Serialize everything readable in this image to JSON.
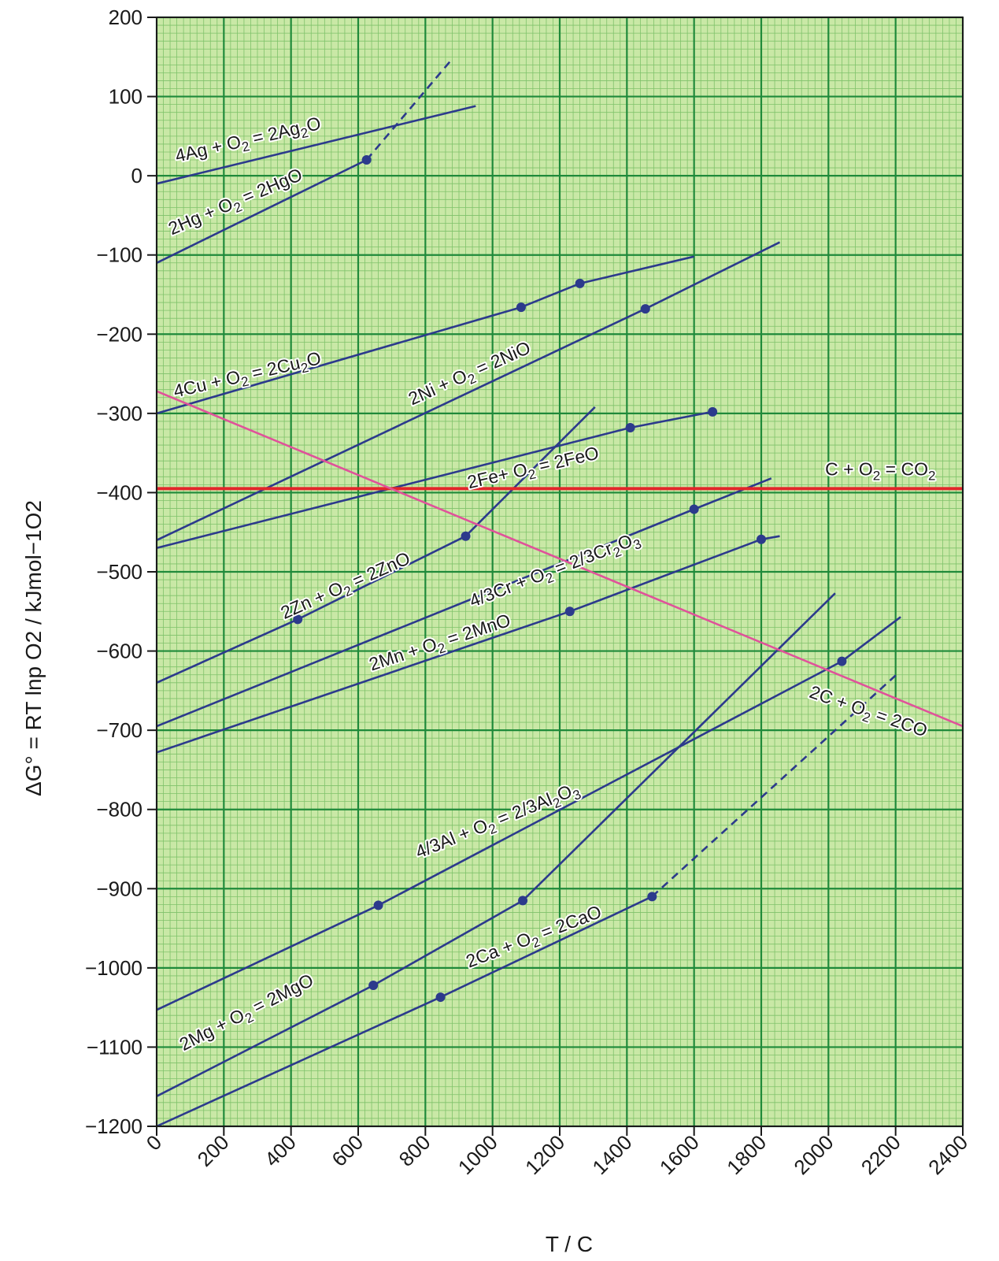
{
  "chart_data": {
    "type": "line",
    "xlabel": "T /  C",
    "ylabel": "ΔG° = RT lnp O2 / kJmol−1O2",
    "xlim": [
      0,
      2400
    ],
    "ylim": [
      -1200,
      200
    ],
    "xticks": [
      "0",
      "200",
      "400",
      "600",
      "800",
      "1000",
      "1200",
      "1400",
      "1600",
      "1800",
      "2000",
      "2200",
      "2400"
    ],
    "yticks": [
      "200",
      "100",
      "0",
      "−100",
      "−200",
      "−300",
      "−400",
      "−500",
      "−600",
      "−700",
      "−800",
      "−900",
      "−1000",
      "−1100",
      "−1200"
    ],
    "grid": true,
    "colors": {
      "background": "#c9e8a6",
      "minor_grid": "#7fc26a",
      "major_grid": "#1f8a3a",
      "line": "#2c3a8c",
      "carbon_monoxide": "#e0529a",
      "carbon_dioxide": "#e3262b"
    },
    "series": [
      {
        "name": "4Ag + O2 = 2Ag2O",
        "label_parts": [
          "4Ag + O",
          "2",
          " = 2Ag",
          "2",
          "O"
        ],
        "color": "#2c3a8c",
        "segments": [
          {
            "style": "solid",
            "x": [
              0,
              950
            ],
            "y": [
              -10,
              88
            ]
          }
        ],
        "markers": []
      },
      {
        "name": "2Hg + O2 = 2HgO",
        "label_parts": [
          "2Hg + O",
          "2",
          " = 2HgO"
        ],
        "color": "#2c3a8c",
        "segments": [
          {
            "style": "solid",
            "x": [
              0,
              625
            ],
            "y": [
              -110,
              20
            ]
          },
          {
            "style": "dashed",
            "x": [
              625,
              875
            ],
            "y": [
              20,
              145
            ]
          }
        ],
        "markers": [
          {
            "x": 625,
            "y": 20
          }
        ]
      },
      {
        "name": "4Cu + O2 = 2Cu2O",
        "label_parts": [
          "4Cu + O",
          "2",
          " = 2Cu",
          "2",
          "O"
        ],
        "color": "#2c3a8c",
        "segments": [
          {
            "style": "solid",
            "x": [
              0,
              1085,
              1260,
              1600
            ],
            "y": [
              -300,
              -166,
              -136,
              -102
            ]
          }
        ],
        "markers": [
          {
            "x": 1085,
            "y": -166
          },
          {
            "x": 1260,
            "y": -136
          }
        ]
      },
      {
        "name": "2Ni + O2 = 2NiO",
        "label_parts": [
          "2Ni + O",
          "2",
          " = 2NiO"
        ],
        "color": "#2c3a8c",
        "segments": [
          {
            "style": "solid",
            "x": [
              0,
              1455,
              1855
            ],
            "y": [
              -460,
              -168,
              -84
            ]
          }
        ],
        "markers": [
          {
            "x": 1455,
            "y": -168
          }
        ]
      },
      {
        "name": "2Fe + O2 = 2FeO",
        "label_parts": [
          "2Fe+ O",
          "2",
          " = 2FeO"
        ],
        "color": "#2c3a8c",
        "segments": [
          {
            "style": "solid",
            "x": [
              0,
              1410,
              1655
            ],
            "y": [
              -470,
              -318,
              -298
            ]
          }
        ],
        "markers": [
          {
            "x": 1410,
            "y": -318
          },
          {
            "x": 1655,
            "y": -298
          }
        ]
      },
      {
        "name": "2Zn + O2 = 2ZnO",
        "label_parts": [
          "2Zn + O",
          "2",
          " = 2ZnO"
        ],
        "color": "#2c3a8c",
        "segments": [
          {
            "style": "solid",
            "x": [
              0,
              420,
              920,
              1305
            ],
            "y": [
              -640,
              -560,
              -455,
              -292
            ]
          }
        ],
        "markers": [
          {
            "x": 420,
            "y": -560
          },
          {
            "x": 920,
            "y": -455
          }
        ]
      },
      {
        "name": "4/3Cr + O2 = 2/3Cr2O3",
        "label_parts": [
          "4/3Cr + O",
          "2",
          " = 2/3Cr",
          "2",
          "O",
          "3"
        ],
        "color": "#2c3a8c",
        "segments": [
          {
            "style": "solid",
            "x": [
              0,
              1600,
              1830
            ],
            "y": [
              -695,
              -421,
              -382
            ]
          }
        ],
        "markers": [
          {
            "x": 1600,
            "y": -421
          }
        ]
      },
      {
        "name": "2Mn + O2 = 2MnO",
        "label_parts": [
          "2Mn + O",
          "2",
          " = 2MnO"
        ],
        "color": "#2c3a8c",
        "segments": [
          {
            "style": "solid",
            "x": [
              0,
              1230,
              1800,
              1855
            ],
            "y": [
              -728,
              -550,
              -459,
              -455
            ]
          }
        ],
        "markers": [
          {
            "x": 1230,
            "y": -550
          },
          {
            "x": 1800,
            "y": -459
          }
        ]
      },
      {
        "name": "4/3Al + O2 = 2/3Al2O3",
        "label_parts": [
          "4/3Al + O",
          "2",
          " = 2/3Al",
          "2",
          "O",
          "3"
        ],
        "color": "#2c3a8c",
        "segments": [
          {
            "style": "solid",
            "x": [
              0,
              660,
              2040,
              2215
            ],
            "y": [
              -1053,
              -921,
              -613,
              -557
            ]
          }
        ],
        "markers": [
          {
            "x": 660,
            "y": -921
          },
          {
            "x": 2040,
            "y": -613
          }
        ]
      },
      {
        "name": "2Mg + O2 = 2MgO",
        "label_parts": [
          "2Mg + O",
          "2",
          " = 2MgO"
        ],
        "color": "#2c3a8c",
        "segments": [
          {
            "style": "solid",
            "x": [
              0,
              645,
              1090,
              2020
            ],
            "y": [
              -1162,
              -1022,
              -915,
              -527
            ]
          }
        ],
        "markers": [
          {
            "x": 645,
            "y": -1022
          },
          {
            "x": 1090,
            "y": -915
          }
        ]
      },
      {
        "name": "2Ca + O2 = 2CaO",
        "label_parts": [
          "2Ca + O",
          "2",
          " = 2CaO"
        ],
        "color": "#2c3a8c",
        "segments": [
          {
            "style": "solid",
            "x": [
              0,
              845,
              1475
            ],
            "y": [
              -1200,
              -1037,
              -910
            ]
          },
          {
            "style": "dashed",
            "x": [
              1475,
              2210
            ],
            "y": [
              -910,
              -627
            ]
          }
        ],
        "markers": [
          {
            "x": 845,
            "y": -1037
          },
          {
            "x": 1475,
            "y": -910
          }
        ]
      },
      {
        "name": "C + O2 = CO2",
        "label_parts": [
          "C + O",
          "2",
          " = CO",
          "2"
        ],
        "color": "#e3262b",
        "segments": [
          {
            "style": "solid",
            "x": [
              0,
              2400
            ],
            "y": [
              -395,
              -395
            ]
          }
        ],
        "markers": []
      },
      {
        "name": "2C + O2 = 2CO",
        "label_parts": [
          "2C + O",
          "2",
          " = 2CO"
        ],
        "color": "#e0529a",
        "segments": [
          {
            "style": "solid",
            "x": [
              0,
              2400
            ],
            "y": [
              -272,
              -695
            ]
          }
        ],
        "markers": []
      }
    ],
    "labels": [
      {
        "series": 0,
        "x": 60,
        "y": 17,
        "angle": -13
      },
      {
        "series": 1,
        "x": 45,
        "y": -75,
        "angle": -23
      },
      {
        "series": 2,
        "x": 55,
        "y": -280,
        "angle": -13
      },
      {
        "series": 3,
        "x": 760,
        "y": -290,
        "angle": -24
      },
      {
        "series": 4,
        "x": 930,
        "y": -395,
        "angle": -13
      },
      {
        "series": 5,
        "x": 380,
        "y": -560,
        "angle": -24
      },
      {
        "series": 6,
        "x": 940,
        "y": -545,
        "angle": -21
      },
      {
        "series": 7,
        "x": 640,
        "y": -625,
        "angle": -18
      },
      {
        "series": 8,
        "x": 780,
        "y": -862,
        "angle": -22
      },
      {
        "series": 9,
        "x": 80,
        "y": -1105,
        "angle": -27
      },
      {
        "series": 10,
        "x": 930,
        "y": -1000,
        "angle": -21
      },
      {
        "series": 11,
        "x": 1990,
        "y": -378,
        "angle": 0
      },
      {
        "series": 12,
        "x": 1940,
        "y": -658,
        "angle": 19
      }
    ]
  }
}
